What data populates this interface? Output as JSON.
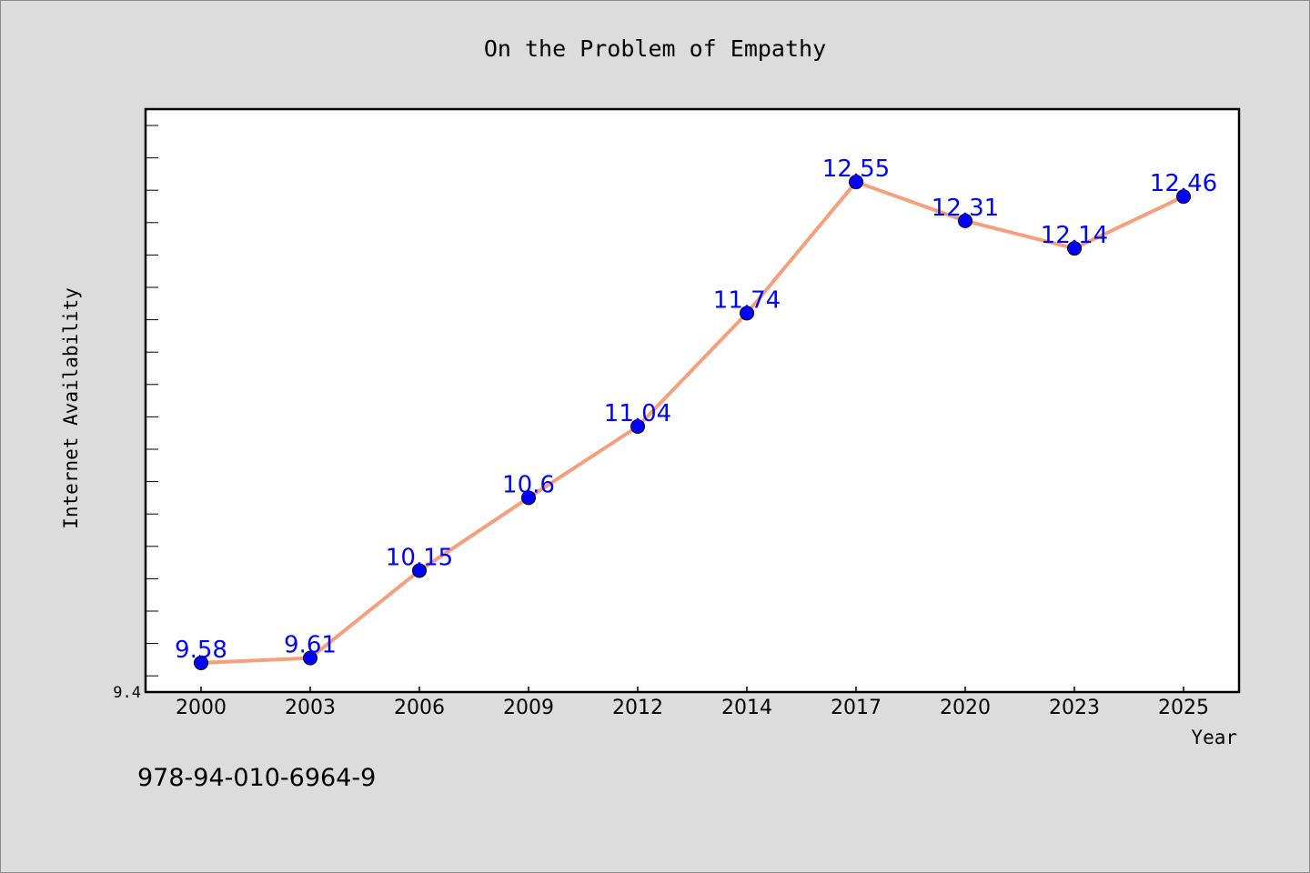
{
  "chart_data": {
    "type": "line",
    "title": "On the Problem of Empathy",
    "xlabel": "Year",
    "ylabel": "Internet Availability",
    "categories": [
      "2000",
      "2003",
      "2006",
      "2009",
      "2012",
      "2014",
      "2017",
      "2020",
      "2023",
      "2025"
    ],
    "values": [
      9.58,
      9.61,
      10.15,
      10.6,
      11.04,
      11.74,
      12.55,
      12.31,
      12.14,
      12.46
    ],
    "data_labels": [
      "9.58",
      "9.61",
      "10.15",
      "10.6",
      "11.04",
      "11.74",
      "12.55",
      "12.31",
      "12.14",
      "12.46"
    ],
    "ylim": [
      9.4,
      13.0
    ],
    "y_tick_label": "9.4",
    "grid": false,
    "line_color": "#f4a07e",
    "marker_color": "#0000ff",
    "label_color": "#0000ff"
  },
  "footer": {
    "isbn": "978-94-010-6964-9"
  }
}
